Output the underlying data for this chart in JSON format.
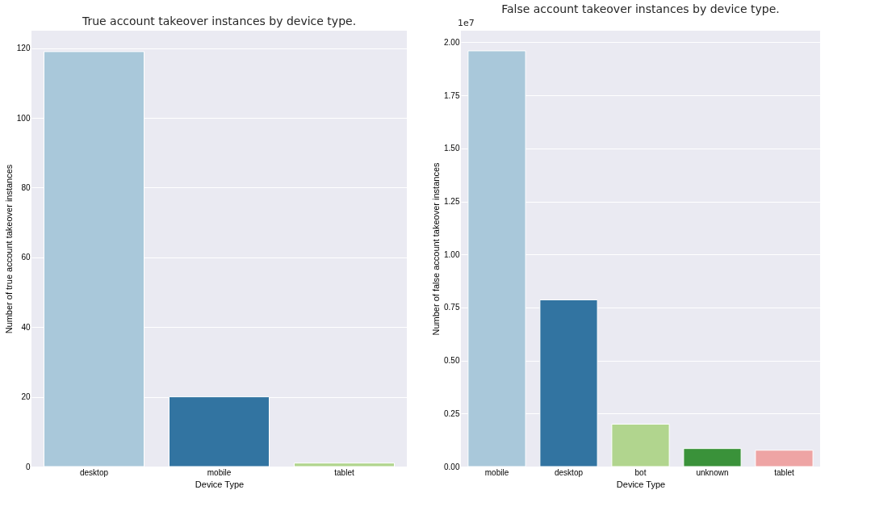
{
  "chart_data": [
    {
      "type": "bar",
      "title": "True account takeover instances by device type.",
      "xlabel": "Device Type",
      "ylabel": "Number of true account takeover instances",
      "categories": [
        "desktop",
        "mobile",
        "tablet"
      ],
      "values": [
        119,
        20,
        1
      ],
      "colors": [
        "#a9c8da",
        "#3274a1",
        "#b1d58e"
      ],
      "ylim": [
        0,
        125
      ],
      "yticks": [
        0,
        20,
        40,
        60,
        80,
        100,
        120
      ],
      "grid": "y"
    },
    {
      "type": "bar",
      "title": "False account takeover instances by device type.",
      "xlabel": "Device Type",
      "ylabel": "Number of false account takeover instances",
      "categories": [
        "mobile",
        "desktop",
        "bot",
        "unknown",
        "tablet"
      ],
      "values": [
        1.96,
        0.786,
        0.2,
        0.085,
        0.077
      ],
      "colors": [
        "#a9c8da",
        "#3274a1",
        "#b1d58e",
        "#3a923a",
        "#eea4a4"
      ],
      "ylim": [
        0,
        2.055
      ],
      "yticks": [
        {
          "value": 0,
          "label": "0.00"
        },
        {
          "value": 0.25,
          "label": "0.25"
        },
        {
          "value": 0.5,
          "label": "0.50"
        },
        {
          "value": 0.75,
          "label": "0.75"
        },
        {
          "value": 1,
          "label": "1.00"
        },
        {
          "value": 1.25,
          "label": "1.25"
        },
        {
          "value": 1.5,
          "label": "1.50"
        },
        {
          "value": 1.75,
          "label": "1.75"
        },
        {
          "value": 2,
          "label": "2.00"
        }
      ],
      "annotations": [
        "1e7"
      ],
      "grid": "y"
    }
  ]
}
